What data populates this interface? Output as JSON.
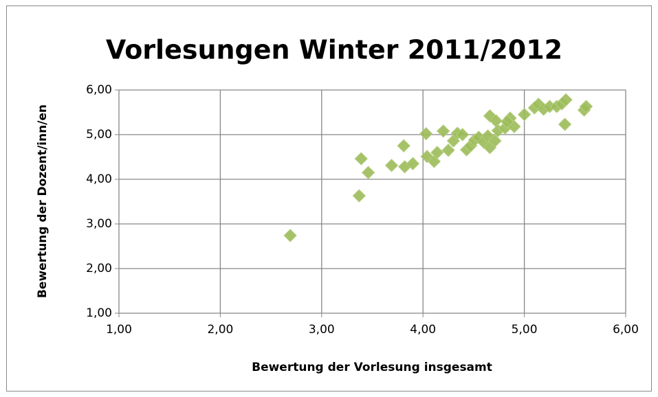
{
  "chart_data": {
    "type": "scatter",
    "title": "Vorlesungen Winter 2011/2012",
    "x_label": "Bewertung der Vorlesung insgesamt",
    "y_label": "Bewertung der Dozent/inn/en",
    "series": [
      {
        "color": "#9bbb59",
        "x": [
          2.69,
          3.37,
          3.39,
          3.46,
          3.69,
          3.81,
          3.82,
          3.9,
          4.03,
          4.04,
          4.11,
          4.14,
          4.2,
          4.25,
          4.3,
          4.34,
          4.39,
          4.43,
          4.47,
          4.51,
          4.55,
          4.6,
          4.64,
          4.66,
          4.66,
          4.71,
          4.72,
          4.74,
          4.81,
          4.86,
          4.9,
          4.83,
          5.0,
          5.1,
          5.14,
          5.19,
          5.25,
          5.32,
          5.37,
          5.41,
          5.4,
          5.59,
          5.61
        ],
        "values": [
          2.74,
          3.63,
          4.46,
          4.15,
          4.31,
          4.75,
          4.28,
          4.35,
          5.02,
          4.51,
          4.4,
          4.6,
          5.08,
          4.65,
          4.86,
          5.03,
          5.0,
          4.66,
          4.75,
          4.88,
          4.94,
          4.83,
          4.97,
          5.42,
          4.71,
          4.86,
          5.31,
          5.09,
          5.15,
          5.37,
          5.18,
          5.29,
          5.45,
          5.6,
          5.68,
          5.57,
          5.63,
          5.63,
          5.69,
          5.78,
          5.23,
          5.55,
          5.63
        ]
      }
    ],
    "xlim": [
      1,
      6
    ],
    "xticks": [
      {
        "value": 1,
        "label": "1,00"
      },
      {
        "value": 2,
        "label": "2,00"
      },
      {
        "value": 3,
        "label": "3,00"
      },
      {
        "value": 4,
        "label": "4,00"
      },
      {
        "value": 5,
        "label": "5,00"
      },
      {
        "value": 6,
        "label": "6,00"
      }
    ],
    "ylim": [
      1,
      6
    ],
    "yticks": [
      {
        "value": 1,
        "label": "1,00"
      },
      {
        "value": 2,
        "label": "2,00"
      },
      {
        "value": 3,
        "label": "3,00"
      },
      {
        "value": 4,
        "label": "4,00"
      },
      {
        "value": 5,
        "label": "5,00"
      },
      {
        "value": 6,
        "label": "6,00"
      }
    ],
    "grid": true
  }
}
